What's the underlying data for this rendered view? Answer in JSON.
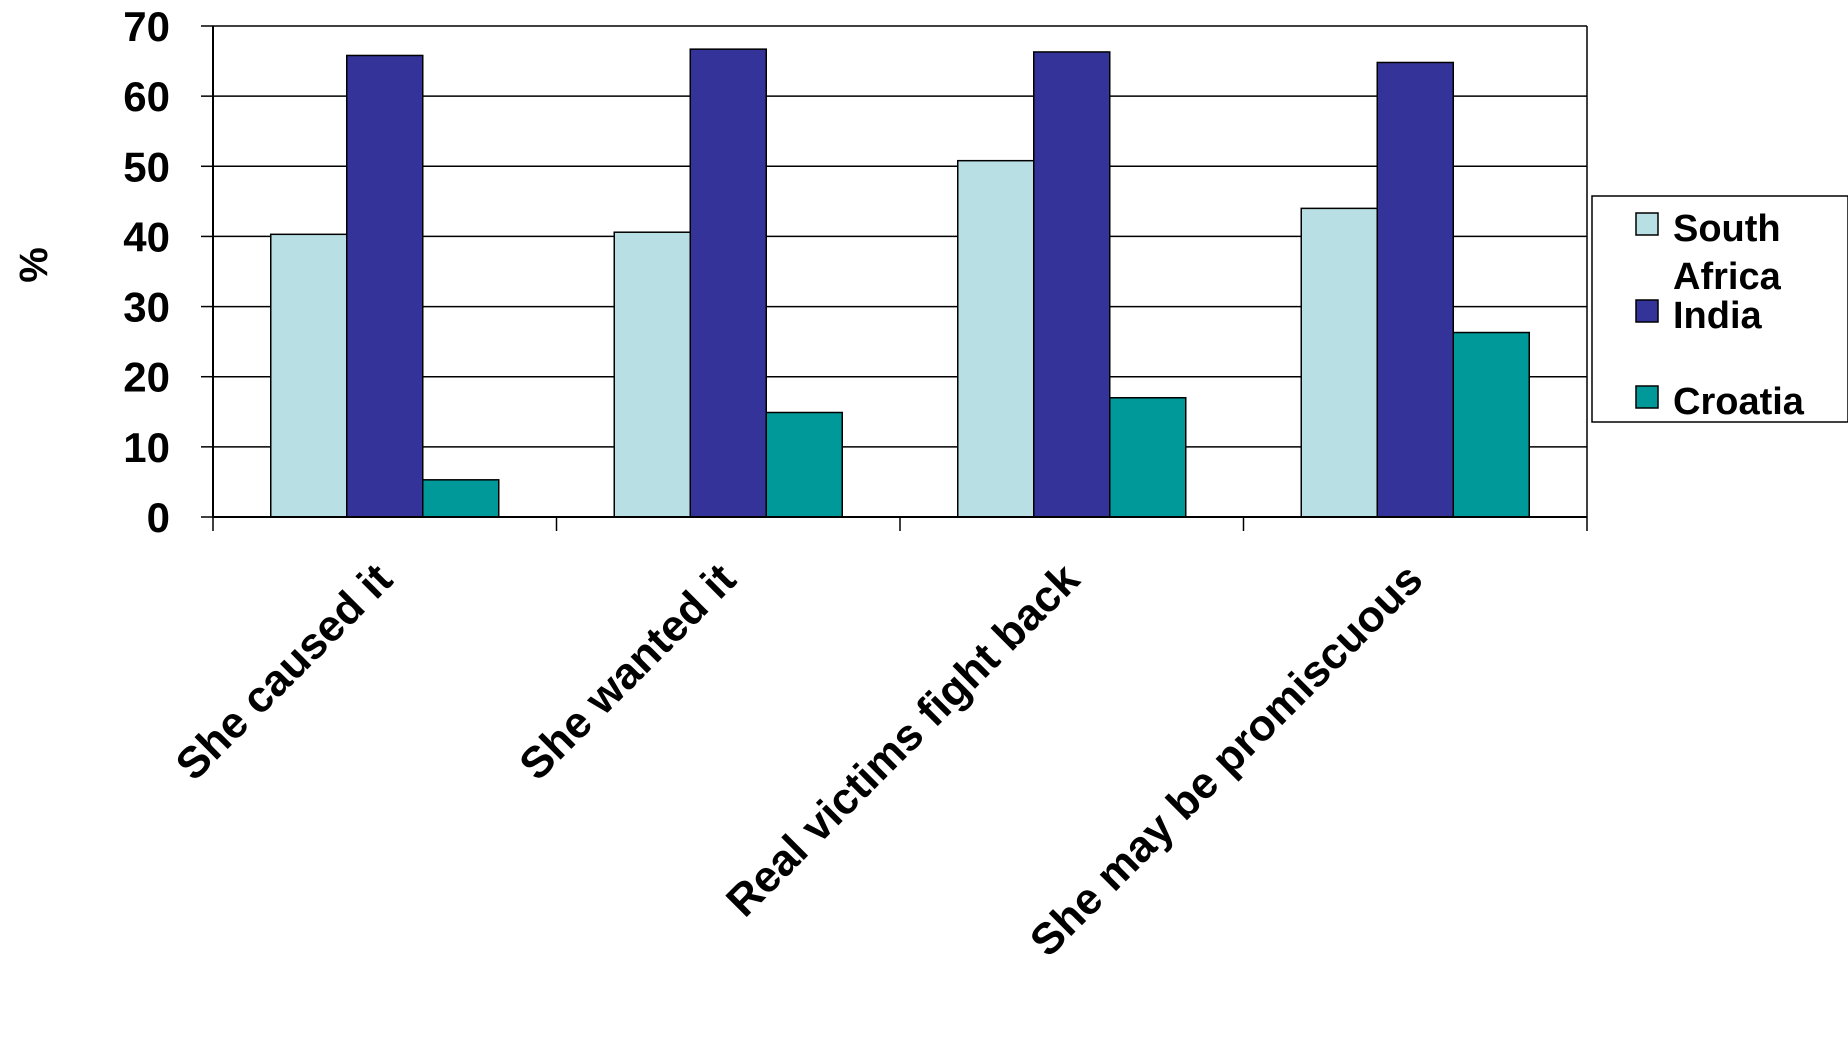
{
  "chart_data": {
    "type": "bar",
    "title": "",
    "xlabel": "",
    "ylabel": "%",
    "ylim": [
      0,
      70
    ],
    "yticks": [
      0,
      10,
      20,
      30,
      40,
      50,
      60,
      70
    ],
    "grid": true,
    "legend_position": "right",
    "categories": [
      "She caused it",
      "She wanted it",
      "Real victims fight back",
      "She may be promiscuous"
    ],
    "series": [
      {
        "name": "South Africa",
        "color": "#b8e0e4",
        "values": [
          40.3,
          40.6,
          50.8,
          44.0
        ]
      },
      {
        "name": "India",
        "color": "#333399",
        "values": [
          65.8,
          66.7,
          66.3,
          64.8
        ]
      },
      {
        "name": "Croatia",
        "color": "#009999",
        "values": [
          5.3,
          14.9,
          17.0,
          26.3
        ]
      }
    ],
    "legend_labels": [
      [
        "South",
        "Africa"
      ],
      [
        "India"
      ],
      [
        "Croatia"
      ]
    ]
  }
}
